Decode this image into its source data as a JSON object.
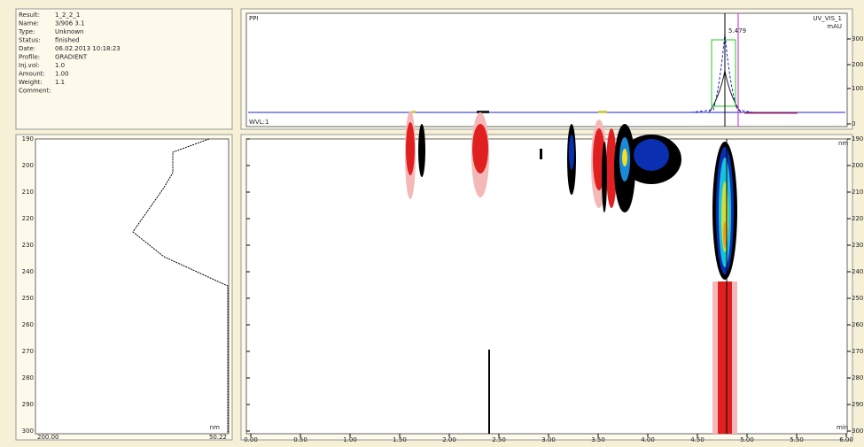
{
  "info": {
    "fields": [
      {
        "label": "Result:",
        "value": "1_2_2_1"
      },
      {
        "label": "Name:",
        "value": "3/906 3.1"
      },
      {
        "label": "Type:",
        "value": "Unknown"
      },
      {
        "label": "Status:",
        "value": "finished"
      },
      {
        "label": "Date:",
        "value": "06.02.2013 10:18:23"
      },
      {
        "label": "Profile:",
        "value": "GRADIENT"
      },
      {
        "label": "Inj.vol:",
        "value": "1.0"
      },
      {
        "label": "Amount:",
        "value": "1.00"
      },
      {
        "label": "Weight:",
        "value": "1.1"
      },
      {
        "label": "Comment:",
        "value": ""
      }
    ]
  },
  "chromatogram": {
    "label": "PPI",
    "channel": "UV_VIS_1",
    "unit": "mAU",
    "peak_label": "5.479",
    "bottom_label": "WVL:1",
    "right_ticks": [
      "300",
      "200",
      "100",
      "0"
    ]
  },
  "contour": {
    "y_ticks": [
      "190",
      "200",
      "210",
      "220",
      "230",
      "240",
      "250",
      "260",
      "270",
      "280",
      "290",
      "300"
    ],
    "x_ticks": [
      "0.00",
      "0.50",
      "1.00",
      "1.50",
      "2.00",
      "2.50",
      "3.00",
      "3.50",
      "4.00",
      "4.50",
      "5.00",
      "5.50",
      "6.00"
    ],
    "y_unit": "nm",
    "x_unit": "min"
  },
  "spectrum": {
    "x_left": "200.00",
    "x_right": "50.22",
    "unit": "nm"
  }
}
